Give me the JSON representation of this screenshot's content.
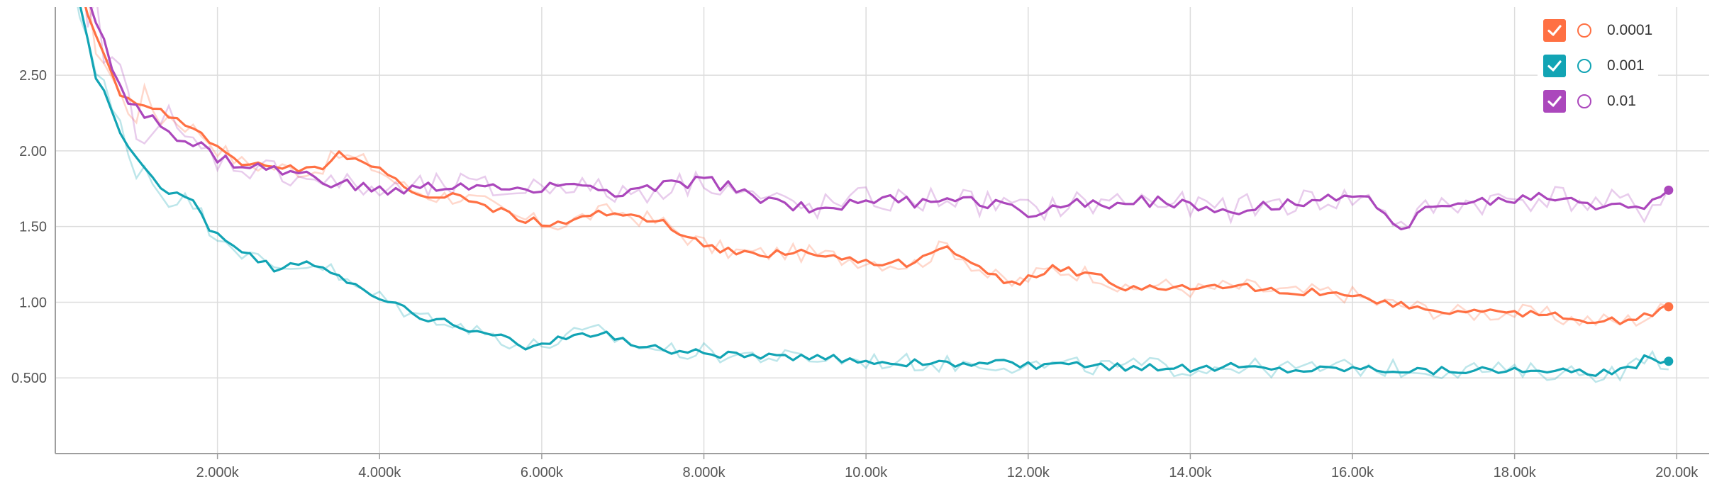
{
  "chart_data": {
    "type": "line",
    "title": "",
    "xlabel": "",
    "ylabel": "",
    "xlim": [
      0,
      20400
    ],
    "ylim": [
      0,
      2.95
    ],
    "x_ticks": [
      2000,
      4000,
      6000,
      8000,
      10000,
      12000,
      14000,
      16000,
      18000,
      20000
    ],
    "x_tick_labels": [
      "2.000k",
      "4.000k",
      "6.000k",
      "8.000k",
      "10.00k",
      "12.00k",
      "14.00k",
      "16.00k",
      "18.00k",
      "20.00k"
    ],
    "y_ticks": [
      0.5,
      1.0,
      1.5,
      2.0,
      2.5
    ],
    "y_tick_labels": [
      "0.500",
      "1.00",
      "1.50",
      "2.00",
      "2.50"
    ],
    "grid": true,
    "legend_position": "top-right",
    "series": [
      {
        "name": "0.0001",
        "color": "#ff7043",
        "checked": true,
        "smoothed": [
          [
            0,
            3.6
          ],
          [
            500,
            2.75
          ],
          [
            800,
            2.35
          ],
          [
            1000,
            2.3
          ],
          [
            1200,
            2.3
          ],
          [
            1500,
            2.2
          ],
          [
            1800,
            2.12
          ],
          [
            2000,
            2.02
          ],
          [
            2300,
            1.92
          ],
          [
            2600,
            1.9
          ],
          [
            2900,
            1.88
          ],
          [
            3200,
            1.87
          ],
          [
            3500,
            1.97
          ],
          [
            3800,
            1.93
          ],
          [
            4000,
            1.87
          ],
          [
            4300,
            1.76
          ],
          [
            4700,
            1.7
          ],
          [
            5000,
            1.7
          ],
          [
            5300,
            1.65
          ],
          [
            5600,
            1.57
          ],
          [
            6000,
            1.52
          ],
          [
            6300,
            1.52
          ],
          [
            6600,
            1.58
          ],
          [
            6900,
            1.6
          ],
          [
            7200,
            1.56
          ],
          [
            7500,
            1.52
          ],
          [
            7800,
            1.43
          ],
          [
            8100,
            1.36
          ],
          [
            8400,
            1.33
          ],
          [
            8700,
            1.32
          ],
          [
            9000,
            1.33
          ],
          [
            9300,
            1.32
          ],
          [
            9600,
            1.3
          ],
          [
            10000,
            1.28
          ],
          [
            10300,
            1.26
          ],
          [
            10600,
            1.25
          ],
          [
            11000,
            1.38
          ],
          [
            11200,
            1.3
          ],
          [
            11500,
            1.18
          ],
          [
            11800,
            1.12
          ],
          [
            12000,
            1.16
          ],
          [
            12300,
            1.22
          ],
          [
            12600,
            1.2
          ],
          [
            12900,
            1.18
          ],
          [
            13200,
            1.06
          ],
          [
            13500,
            1.12
          ],
          [
            13800,
            1.1
          ],
          [
            14100,
            1.08
          ],
          [
            14400,
            1.1
          ],
          [
            14700,
            1.1
          ],
          [
            15000,
            1.08
          ],
          [
            15300,
            1.06
          ],
          [
            15600,
            1.07
          ],
          [
            16000,
            1.05
          ],
          [
            16300,
            1.0
          ],
          [
            16600,
            0.98
          ],
          [
            17000,
            0.95
          ],
          [
            17300,
            0.93
          ],
          [
            17600,
            0.93
          ],
          [
            18000,
            0.93
          ],
          [
            18300,
            0.92
          ],
          [
            18700,
            0.89
          ],
          [
            19000,
            0.88
          ],
          [
            19300,
            0.87
          ],
          [
            19600,
            0.9
          ],
          [
            19900,
            0.97
          ]
        ],
        "raw_jitter": 0.06,
        "last_value": 0.97
      },
      {
        "name": "0.001",
        "color": "#12a4b4",
        "checked": true,
        "smoothed": [
          [
            0,
            3.6
          ],
          [
            300,
            3.0
          ],
          [
            500,
            2.5
          ],
          [
            700,
            2.25
          ],
          [
            900,
            2.0
          ],
          [
            1100,
            1.9
          ],
          [
            1300,
            1.75
          ],
          [
            1500,
            1.7
          ],
          [
            1700,
            1.65
          ],
          [
            1900,
            1.5
          ],
          [
            2100,
            1.42
          ],
          [
            2400,
            1.3
          ],
          [
            2700,
            1.22
          ],
          [
            3000,
            1.25
          ],
          [
            3300,
            1.25
          ],
          [
            3600,
            1.12
          ],
          [
            3900,
            1.05
          ],
          [
            4200,
            0.98
          ],
          [
            4500,
            0.9
          ],
          [
            4800,
            0.9
          ],
          [
            5100,
            0.82
          ],
          [
            5500,
            0.77
          ],
          [
            5800,
            0.7
          ],
          [
            6100,
            0.73
          ],
          [
            6400,
            0.78
          ],
          [
            6700,
            0.8
          ],
          [
            7000,
            0.75
          ],
          [
            7300,
            0.7
          ],
          [
            7600,
            0.68
          ],
          [
            8000,
            0.67
          ],
          [
            8300,
            0.65
          ],
          [
            8600,
            0.65
          ],
          [
            9000,
            0.63
          ],
          [
            9400,
            0.63
          ],
          [
            9800,
            0.62
          ],
          [
            10200,
            0.61
          ],
          [
            10600,
            0.6
          ],
          [
            11000,
            0.59
          ],
          [
            11500,
            0.6
          ],
          [
            12000,
            0.58
          ],
          [
            12500,
            0.58
          ],
          [
            13000,
            0.57
          ],
          [
            13500,
            0.58
          ],
          [
            14000,
            0.56
          ],
          [
            14500,
            0.58
          ],
          [
            15000,
            0.56
          ],
          [
            15500,
            0.56
          ],
          [
            16000,
            0.57
          ],
          [
            16500,
            0.56
          ],
          [
            17000,
            0.55
          ],
          [
            17500,
            0.56
          ],
          [
            18000,
            0.54
          ],
          [
            18500,
            0.54
          ],
          [
            19000,
            0.53
          ],
          [
            19400,
            0.55
          ],
          [
            19600,
            0.63
          ],
          [
            19900,
            0.61
          ]
        ],
        "raw_jitter": 0.06,
        "last_value": 0.61
      },
      {
        "name": "0.01",
        "color": "#ab47bc",
        "checked": true,
        "smoothed": [
          [
            0,
            3.7
          ],
          [
            500,
            2.85
          ],
          [
            800,
            2.4
          ],
          [
            1000,
            2.3
          ],
          [
            1200,
            2.2
          ],
          [
            1500,
            2.1
          ],
          [
            1800,
            2.02
          ],
          [
            2000,
            1.95
          ],
          [
            2300,
            1.9
          ],
          [
            2600,
            1.88
          ],
          [
            2900,
            1.85
          ],
          [
            3200,
            1.82
          ],
          [
            3500,
            1.78
          ],
          [
            3800,
            1.75
          ],
          [
            4100,
            1.73
          ],
          [
            4400,
            1.74
          ],
          [
            4700,
            1.76
          ],
          [
            5000,
            1.77
          ],
          [
            5300,
            1.75
          ],
          [
            5600,
            1.73
          ],
          [
            6000,
            1.77
          ],
          [
            6300,
            1.8
          ],
          [
            6600,
            1.74
          ],
          [
            6900,
            1.72
          ],
          [
            7200,
            1.73
          ],
          [
            7500,
            1.76
          ],
          [
            7800,
            1.78
          ],
          [
            8000,
            1.82
          ],
          [
            8300,
            1.76
          ],
          [
            8600,
            1.7
          ],
          [
            9000,
            1.65
          ],
          [
            9300,
            1.62
          ],
          [
            9600,
            1.64
          ],
          [
            10000,
            1.68
          ],
          [
            10300,
            1.67
          ],
          [
            10600,
            1.66
          ],
          [
            11000,
            1.7
          ],
          [
            11300,
            1.66
          ],
          [
            11600,
            1.65
          ],
          [
            12000,
            1.6
          ],
          [
            12300,
            1.63
          ],
          [
            12600,
            1.65
          ],
          [
            13000,
            1.66
          ],
          [
            13300,
            1.68
          ],
          [
            13600,
            1.66
          ],
          [
            14000,
            1.63
          ],
          [
            14300,
            1.62
          ],
          [
            14600,
            1.62
          ],
          [
            15000,
            1.65
          ],
          [
            15300,
            1.66
          ],
          [
            15600,
            1.68
          ],
          [
            16000,
            1.68
          ],
          [
            16300,
            1.66
          ],
          [
            16600,
            1.5
          ],
          [
            16900,
            1.6
          ],
          [
            17200,
            1.66
          ],
          [
            17500,
            1.65
          ],
          [
            17800,
            1.67
          ],
          [
            18100,
            1.68
          ],
          [
            18400,
            1.7
          ],
          [
            18700,
            1.68
          ],
          [
            19000,
            1.64
          ],
          [
            19300,
            1.66
          ],
          [
            19600,
            1.6
          ],
          [
            19900,
            1.74
          ]
        ],
        "raw_jitter": 0.09,
        "last_value": 1.74
      }
    ]
  }
}
